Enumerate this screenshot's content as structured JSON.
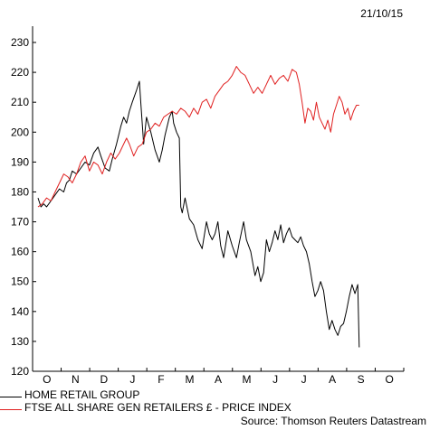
{
  "date_label": "21/10/15",
  "source_label": "Source: Thomson Reuters Datastream",
  "chart_data": {
    "type": "line",
    "ylim": [
      120,
      230
    ],
    "yticks": [
      120,
      130,
      140,
      150,
      160,
      170,
      180,
      190,
      200,
      210,
      220,
      230
    ],
    "month_labels": [
      "O",
      "N",
      "D",
      "J",
      "F",
      "M",
      "A",
      "M",
      "J",
      "J",
      "A",
      "S",
      "O"
    ],
    "grid": false,
    "legend_position": "bottom-left",
    "series": [
      {
        "name": "HOME RETAIL GROUP",
        "color": "#000000",
        "points": [
          [
            0.0,
            178
          ],
          [
            0.1,
            175
          ],
          [
            0.2,
            176
          ],
          [
            0.3,
            175
          ],
          [
            0.45,
            177
          ],
          [
            0.6,
            179
          ],
          [
            0.75,
            181
          ],
          [
            0.9,
            180
          ],
          [
            1.0,
            183
          ],
          [
            1.1,
            184
          ],
          [
            1.2,
            187
          ],
          [
            1.35,
            186
          ],
          [
            1.5,
            188
          ],
          [
            1.65,
            190
          ],
          [
            1.8,
            189
          ],
          [
            1.95,
            193
          ],
          [
            2.1,
            195
          ],
          [
            2.2,
            192
          ],
          [
            2.35,
            188
          ],
          [
            2.5,
            187
          ],
          [
            2.6,
            191
          ],
          [
            2.75,
            196
          ],
          [
            2.9,
            202
          ],
          [
            3.0,
            205
          ],
          [
            3.1,
            203
          ],
          [
            3.2,
            207
          ],
          [
            3.3,
            210
          ],
          [
            3.45,
            214
          ],
          [
            3.55,
            217
          ],
          [
            3.6,
            210
          ],
          [
            3.7,
            196
          ],
          [
            3.8,
            205
          ],
          [
            3.95,
            200
          ],
          [
            4.1,
            194
          ],
          [
            4.25,
            190
          ],
          [
            4.35,
            194
          ],
          [
            4.45,
            199
          ],
          [
            4.6,
            205
          ],
          [
            4.7,
            207
          ],
          [
            4.75,
            203
          ],
          [
            4.85,
            200
          ],
          [
            4.95,
            198
          ],
          [
            5.0,
            175
          ],
          [
            5.05,
            173
          ],
          [
            5.15,
            178
          ],
          [
            5.3,
            171
          ],
          [
            5.45,
            169
          ],
          [
            5.6,
            164
          ],
          [
            5.75,
            161
          ],
          [
            5.9,
            170
          ],
          [
            6.0,
            166
          ],
          [
            6.1,
            164
          ],
          [
            6.2,
            166
          ],
          [
            6.3,
            170
          ],
          [
            6.4,
            162
          ],
          [
            6.5,
            158
          ],
          [
            6.65,
            167
          ],
          [
            6.8,
            162
          ],
          [
            6.95,
            158
          ],
          [
            7.05,
            163
          ],
          [
            7.2,
            170
          ],
          [
            7.3,
            164
          ],
          [
            7.45,
            160
          ],
          [
            7.6,
            152
          ],
          [
            7.7,
            155
          ],
          [
            7.8,
            150
          ],
          [
            7.9,
            153
          ],
          [
            8.0,
            164
          ],
          [
            8.1,
            160
          ],
          [
            8.2,
            163
          ],
          [
            8.3,
            167
          ],
          [
            8.4,
            164
          ],
          [
            8.5,
            169
          ],
          [
            8.6,
            163
          ],
          [
            8.7,
            166
          ],
          [
            8.8,
            168
          ],
          [
            8.9,
            165
          ],
          [
            9.0,
            164
          ],
          [
            9.1,
            163
          ],
          [
            9.2,
            165
          ],
          [
            9.3,
            162
          ],
          [
            9.4,
            160
          ],
          [
            9.5,
            156
          ],
          [
            9.6,
            150
          ],
          [
            9.7,
            145
          ],
          [
            9.8,
            147
          ],
          [
            9.9,
            150
          ],
          [
            10.0,
            147
          ],
          [
            10.1,
            140
          ],
          [
            10.2,
            134
          ],
          [
            10.3,
            137
          ],
          [
            10.4,
            134
          ],
          [
            10.5,
            132
          ],
          [
            10.6,
            135
          ],
          [
            10.7,
            136
          ],
          [
            10.8,
            140
          ],
          [
            10.9,
            145
          ],
          [
            11.0,
            149
          ],
          [
            11.1,
            146
          ],
          [
            11.2,
            149
          ],
          [
            11.25,
            128
          ]
        ]
      },
      {
        "name": "FTSE ALL SHARE GEN RETAILERS £ - PRICE INDEX",
        "color": "#e02020",
        "points": [
          [
            0.0,
            175
          ],
          [
            0.15,
            176
          ],
          [
            0.3,
            178
          ],
          [
            0.45,
            177
          ],
          [
            0.6,
            180
          ],
          [
            0.75,
            183
          ],
          [
            0.9,
            186
          ],
          [
            1.05,
            185
          ],
          [
            1.2,
            183
          ],
          [
            1.35,
            186
          ],
          [
            1.5,
            190
          ],
          [
            1.65,
            192
          ],
          [
            1.8,
            187
          ],
          [
            1.95,
            190
          ],
          [
            2.1,
            189
          ],
          [
            2.25,
            186
          ],
          [
            2.4,
            190
          ],
          [
            2.55,
            193
          ],
          [
            2.7,
            191
          ],
          [
            2.85,
            193
          ],
          [
            3.0,
            196
          ],
          [
            3.1,
            198
          ],
          [
            3.2,
            196
          ],
          [
            3.35,
            192
          ],
          [
            3.5,
            195
          ],
          [
            3.65,
            196
          ],
          [
            3.8,
            200
          ],
          [
            3.95,
            201
          ],
          [
            4.1,
            203
          ],
          [
            4.25,
            202
          ],
          [
            4.4,
            205
          ],
          [
            4.55,
            206
          ],
          [
            4.7,
            207
          ],
          [
            4.85,
            206
          ],
          [
            5.0,
            208
          ],
          [
            5.15,
            207
          ],
          [
            5.3,
            205
          ],
          [
            5.45,
            208
          ],
          [
            5.6,
            206
          ],
          [
            5.75,
            210
          ],
          [
            5.9,
            211
          ],
          [
            6.05,
            208
          ],
          [
            6.2,
            212
          ],
          [
            6.35,
            214
          ],
          [
            6.5,
            216
          ],
          [
            6.65,
            217
          ],
          [
            6.8,
            219
          ],
          [
            6.95,
            222
          ],
          [
            7.1,
            220
          ],
          [
            7.25,
            219
          ],
          [
            7.4,
            216
          ],
          [
            7.55,
            213
          ],
          [
            7.7,
            215
          ],
          [
            7.85,
            213
          ],
          [
            8.0,
            216
          ],
          [
            8.15,
            219
          ],
          [
            8.3,
            216
          ],
          [
            8.45,
            218
          ],
          [
            8.6,
            219
          ],
          [
            8.75,
            217
          ],
          [
            8.9,
            221
          ],
          [
            9.05,
            220
          ],
          [
            9.15,
            216
          ],
          [
            9.25,
            210
          ],
          [
            9.35,
            203
          ],
          [
            9.45,
            208
          ],
          [
            9.55,
            207
          ],
          [
            9.65,
            204
          ],
          [
            9.75,
            210
          ],
          [
            9.85,
            205
          ],
          [
            9.95,
            203
          ],
          [
            10.05,
            201
          ],
          [
            10.15,
            204
          ],
          [
            10.25,
            200
          ],
          [
            10.35,
            206
          ],
          [
            10.45,
            209
          ],
          [
            10.55,
            212
          ],
          [
            10.65,
            210
          ],
          [
            10.75,
            206
          ],
          [
            10.85,
            208
          ],
          [
            10.95,
            204
          ],
          [
            11.05,
            207
          ],
          [
            11.15,
            209
          ],
          [
            11.25,
            209
          ]
        ]
      }
    ]
  }
}
